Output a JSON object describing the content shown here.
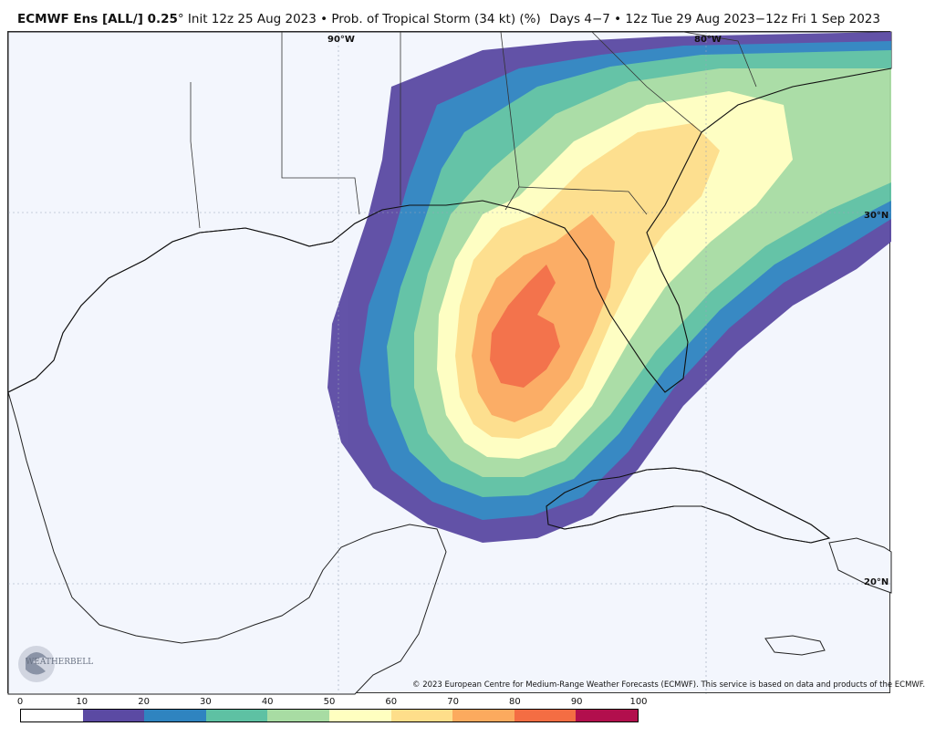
{
  "header": {
    "model": "ECMWF Ens [ALL/] 0.25",
    "degree": "°",
    "init": " Init 12z 25 Aug 2023 • Prob. of Tropical Storm (34 kt) (%)",
    "valid": "Days 4−7 • 12z Tue 29 Aug 2023−12z Fri 1 Sep 2023"
  },
  "map": {
    "labels": {
      "lon90": "90°W",
      "lon80": "80°W",
      "lat30": "30°N",
      "lat20": "20°N"
    },
    "credit": "© 2023 European Centre for Medium-Range Weather Forecasts (ECMWF). This service is based on data and products of the ECMWF.",
    "logo_text": "WEATHERBELL"
  },
  "colorbar": {
    "ticks": [
      "0",
      "10",
      "20",
      "30",
      "40",
      "50",
      "60",
      "70",
      "80",
      "90",
      "100"
    ],
    "colors": [
      "#ffffff",
      "#5b4aa3",
      "#2f84c0",
      "#5ec1a3",
      "#a8dca3",
      "#ffffc0",
      "#fede8a",
      "#fcaa5e",
      "#f46d43",
      "#b20f4d"
    ]
  }
}
